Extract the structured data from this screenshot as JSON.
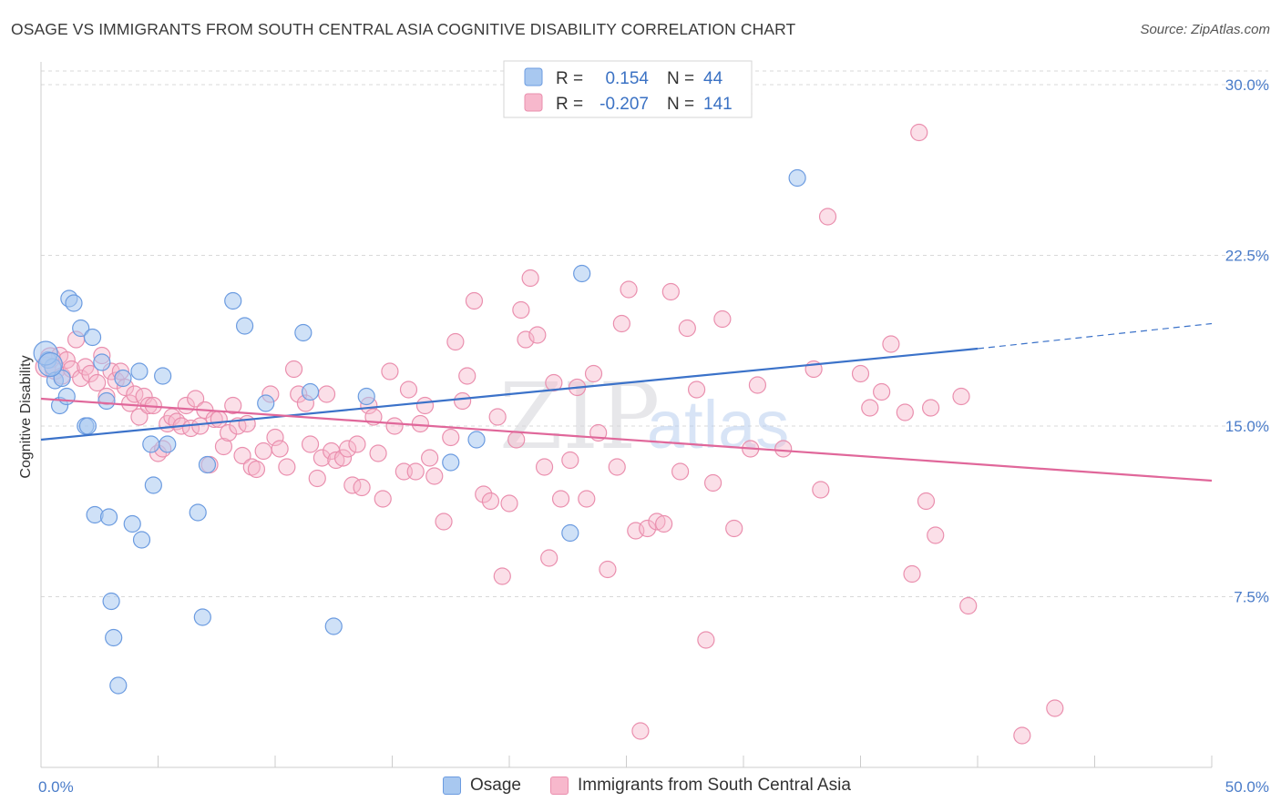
{
  "title": "OSAGE VS IMMIGRANTS FROM SOUTH CENTRAL ASIA COGNITIVE DISABILITY CORRELATION CHART",
  "source": "Source: ZipAtlas.com",
  "watermark": {
    "zip": "ZIP",
    "atlas": "atlas"
  },
  "colors": {
    "osage_fill": "#a8c8f0",
    "osage_stroke": "#6b9be0",
    "osage_line": "#3b72c9",
    "imm_fill": "#f7b8cc",
    "imm_stroke": "#ea8fae",
    "imm_line": "#e0679a",
    "grid": "#d8d8d8",
    "tick_label": "#4a7cc9"
  },
  "legend": {
    "rows": [
      {
        "r_label": "R =",
        "r_value": "0.154",
        "n_label": "N =",
        "n_value": "44"
      },
      {
        "r_label": "R =",
        "r_value": "-0.207",
        "n_label": "N =",
        "n_value": "141"
      }
    ]
  },
  "bottom_legend": {
    "osage": "Osage",
    "immigrants": "Immigrants from South Central Asia"
  },
  "chart_data": {
    "type": "scatter",
    "title": "OSAGE VS IMMIGRANTS FROM SOUTH CENTRAL ASIA COGNITIVE DISABILITY CORRELATION CHART",
    "xlabel": "",
    "ylabel": "Cognitive Disability",
    "xlim": [
      0,
      50
    ],
    "ylim": [
      0,
      31
    ],
    "x_tick_labels": [
      "0.0%",
      "50.0%"
    ],
    "y_ticks": [
      7.5,
      15.0,
      22.5,
      30.0
    ],
    "y_tick_labels": [
      "7.5%",
      "15.0%",
      "22.5%",
      "30.0%"
    ],
    "grid": "horizontal-dashed",
    "legend_position": "top-center",
    "series": [
      {
        "name": "Osage",
        "r": 0.154,
        "n": 44,
        "trend": {
          "x0": 0,
          "y0": 14.4,
          "x1": 40,
          "y1": 18.4,
          "dash_to_x": 50,
          "dash_to_y": 19.5
        },
        "points": [
          [
            0.3,
            17.9
          ],
          [
            0.5,
            17.6
          ],
          [
            0.6,
            17.0
          ],
          [
            0.8,
            15.9
          ],
          [
            0.9,
            17.1
          ],
          [
            1.1,
            16.3
          ],
          [
            1.2,
            20.6
          ],
          [
            1.4,
            20.4
          ],
          [
            1.7,
            19.3
          ],
          [
            1.9,
            15.0
          ],
          [
            2.0,
            15.0
          ],
          [
            2.2,
            18.9
          ],
          [
            2.3,
            11.1
          ],
          [
            2.6,
            17.8
          ],
          [
            2.8,
            16.1
          ],
          [
            2.9,
            11.0
          ],
          [
            3.0,
            7.3
          ],
          [
            3.1,
            5.7
          ],
          [
            3.3,
            3.6
          ],
          [
            3.5,
            17.1
          ],
          [
            3.9,
            10.7
          ],
          [
            4.2,
            17.4
          ],
          [
            4.3,
            10.0
          ],
          [
            4.7,
            14.2
          ],
          [
            4.8,
            12.4
          ],
          [
            5.2,
            17.2
          ],
          [
            5.4,
            14.2
          ],
          [
            6.7,
            11.2
          ],
          [
            6.9,
            6.6
          ],
          [
            7.1,
            13.3
          ],
          [
            8.2,
            20.5
          ],
          [
            8.7,
            19.4
          ],
          [
            9.6,
            16.0
          ],
          [
            11.2,
            19.1
          ],
          [
            11.5,
            16.5
          ],
          [
            12.5,
            6.2
          ],
          [
            13.9,
            16.3
          ],
          [
            17.5,
            13.4
          ],
          [
            18.6,
            14.4
          ],
          [
            22.6,
            10.3
          ],
          [
            23.1,
            21.7
          ],
          [
            32.3,
            25.9
          ],
          [
            0.2,
            18.2
          ],
          [
            0.4,
            17.7
          ]
        ]
      },
      {
        "name": "Immigrants from South Central Asia",
        "r": -0.207,
        "n": 141,
        "trend": {
          "x0": 0,
          "y0": 16.2,
          "x1": 50,
          "y1": 12.6
        },
        "points": [
          [
            0.2,
            17.6
          ],
          [
            0.4,
            18.0
          ],
          [
            0.6,
            17.5
          ],
          [
            0.8,
            18.1
          ],
          [
            0.9,
            17.2
          ],
          [
            1.1,
            17.9
          ],
          [
            1.3,
            17.5
          ],
          [
            1.5,
            18.8
          ],
          [
            1.7,
            17.1
          ],
          [
            1.9,
            17.6
          ],
          [
            2.1,
            17.3
          ],
          [
            2.4,
            16.9
          ],
          [
            2.6,
            18.1
          ],
          [
            2.8,
            16.3
          ],
          [
            3.0,
            17.4
          ],
          [
            3.2,
            17.0
          ],
          [
            3.4,
            17.4
          ],
          [
            3.6,
            16.7
          ],
          [
            3.8,
            16.0
          ],
          [
            4.0,
            16.4
          ],
          [
            4.2,
            15.4
          ],
          [
            4.4,
            16.3
          ],
          [
            4.6,
            15.9
          ],
          [
            4.8,
            15.9
          ],
          [
            5.0,
            13.8
          ],
          [
            5.2,
            14.0
          ],
          [
            5.4,
            15.1
          ],
          [
            5.6,
            15.4
          ],
          [
            5.8,
            15.2
          ],
          [
            6.0,
            15.0
          ],
          [
            6.2,
            15.9
          ],
          [
            6.4,
            14.9
          ],
          [
            6.6,
            16.2
          ],
          [
            6.8,
            15.0
          ],
          [
            7.0,
            15.7
          ],
          [
            7.2,
            13.3
          ],
          [
            7.4,
            15.3
          ],
          [
            7.6,
            15.3
          ],
          [
            7.8,
            14.1
          ],
          [
            8.0,
            14.7
          ],
          [
            8.2,
            15.9
          ],
          [
            8.4,
            15.0
          ],
          [
            8.6,
            13.7
          ],
          [
            8.8,
            15.1
          ],
          [
            9.0,
            13.2
          ],
          [
            9.2,
            13.1
          ],
          [
            9.5,
            13.9
          ],
          [
            9.8,
            16.4
          ],
          [
            10.0,
            14.5
          ],
          [
            10.2,
            14.0
          ],
          [
            10.5,
            13.2
          ],
          [
            10.8,
            17.5
          ],
          [
            11.0,
            16.4
          ],
          [
            11.3,
            16.0
          ],
          [
            11.5,
            14.2
          ],
          [
            11.8,
            12.7
          ],
          [
            12.0,
            13.6
          ],
          [
            12.2,
            16.4
          ],
          [
            12.4,
            13.9
          ],
          [
            12.6,
            13.5
          ],
          [
            12.9,
            13.6
          ],
          [
            13.1,
            14.0
          ],
          [
            13.3,
            12.4
          ],
          [
            13.5,
            14.2
          ],
          [
            13.7,
            12.3
          ],
          [
            14.0,
            15.9
          ],
          [
            14.2,
            15.4
          ],
          [
            14.4,
            13.8
          ],
          [
            14.6,
            11.8
          ],
          [
            14.9,
            17.4
          ],
          [
            15.1,
            15.0
          ],
          [
            15.5,
            13.0
          ],
          [
            15.7,
            16.6
          ],
          [
            16.0,
            13.0
          ],
          [
            16.2,
            15.1
          ],
          [
            16.4,
            15.9
          ],
          [
            16.6,
            13.6
          ],
          [
            16.8,
            12.8
          ],
          [
            17.2,
            10.8
          ],
          [
            17.5,
            14.5
          ],
          [
            17.7,
            18.7
          ],
          [
            18.0,
            16.1
          ],
          [
            18.2,
            17.2
          ],
          [
            18.5,
            20.5
          ],
          [
            18.9,
            12.0
          ],
          [
            19.2,
            11.7
          ],
          [
            19.5,
            15.4
          ],
          [
            19.7,
            8.4
          ],
          [
            20.0,
            11.6
          ],
          [
            20.3,
            14.4
          ],
          [
            20.5,
            20.1
          ],
          [
            20.7,
            18.8
          ],
          [
            20.9,
            21.5
          ],
          [
            21.2,
            19.0
          ],
          [
            21.5,
            13.2
          ],
          [
            21.7,
            9.2
          ],
          [
            21.9,
            16.9
          ],
          [
            22.2,
            11.8
          ],
          [
            22.6,
            13.5
          ],
          [
            22.9,
            16.7
          ],
          [
            23.3,
            11.8
          ],
          [
            23.6,
            17.3
          ],
          [
            23.8,
            14.7
          ],
          [
            24.2,
            8.7
          ],
          [
            24.6,
            13.2
          ],
          [
            24.8,
            19.5
          ],
          [
            25.1,
            21.0
          ],
          [
            25.4,
            10.4
          ],
          [
            25.6,
            1.6
          ],
          [
            25.9,
            10.5
          ],
          [
            26.3,
            10.8
          ],
          [
            26.6,
            10.7
          ],
          [
            26.9,
            20.9
          ],
          [
            27.3,
            13.0
          ],
          [
            27.6,
            19.3
          ],
          [
            28.0,
            16.6
          ],
          [
            28.4,
            5.6
          ],
          [
            28.7,
            12.5
          ],
          [
            29.1,
            19.7
          ],
          [
            29.6,
            10.5
          ],
          [
            30.0,
            29.6
          ],
          [
            30.3,
            14.0
          ],
          [
            30.6,
            16.8
          ],
          [
            31.7,
            14.0
          ],
          [
            33.0,
            17.5
          ],
          [
            33.3,
            12.2
          ],
          [
            33.6,
            24.2
          ],
          [
            35.0,
            17.3
          ],
          [
            35.4,
            15.8
          ],
          [
            35.9,
            16.5
          ],
          [
            36.3,
            18.6
          ],
          [
            36.9,
            15.6
          ],
          [
            37.2,
            8.5
          ],
          [
            37.5,
            27.9
          ],
          [
            37.8,
            11.7
          ],
          [
            38.0,
            15.8
          ],
          [
            38.2,
            10.2
          ],
          [
            39.3,
            16.3
          ],
          [
            39.6,
            7.1
          ],
          [
            41.9,
            1.4
          ],
          [
            43.3,
            2.6
          ]
        ]
      }
    ]
  }
}
